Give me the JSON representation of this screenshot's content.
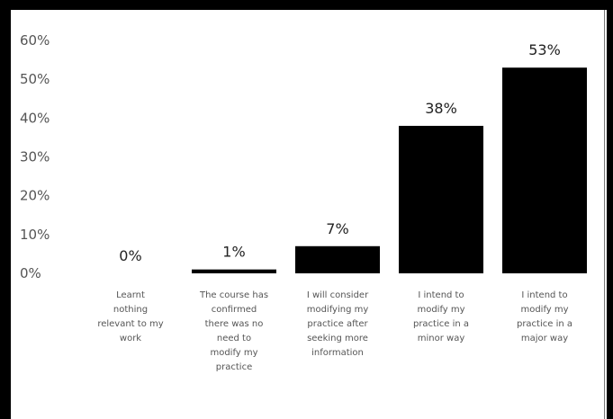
{
  "chart_data": {
    "type": "bar",
    "categories": [
      "Learnt nothing relevant to my work",
      "The course has confirmed there was no need to modify my practice",
      "I will consider modifying my practice after seeking more information",
      "I intend to modify my practice in a minor way",
      "I intend to modify my practice in a major way"
    ],
    "category_lines": [
      [
        "Learnt",
        "nothing",
        "relevant to my",
        "work"
      ],
      [
        "The course has",
        "confirmed",
        "there was no",
        "need to",
        "modify my",
        "practice"
      ],
      [
        "I will consider",
        "modifying my",
        "practice after",
        "seeking more",
        "information"
      ],
      [
        "I intend to",
        "modify my",
        "practice in a",
        "minor way"
      ],
      [
        "I intend to",
        "modify my",
        "practice in a",
        "major way"
      ]
    ],
    "values": [
      0,
      1,
      7,
      38,
      53
    ],
    "data_labels": [
      "0%",
      "1%",
      "7%",
      "38%",
      "53%"
    ],
    "y_ticks": [
      "0%",
      "10%",
      "20%",
      "30%",
      "40%",
      "50%",
      "60%"
    ],
    "ylim": [
      0,
      60
    ],
    "grid": false,
    "bar_color": "#000000",
    "title": "",
    "xlabel": "",
    "ylabel": ""
  }
}
